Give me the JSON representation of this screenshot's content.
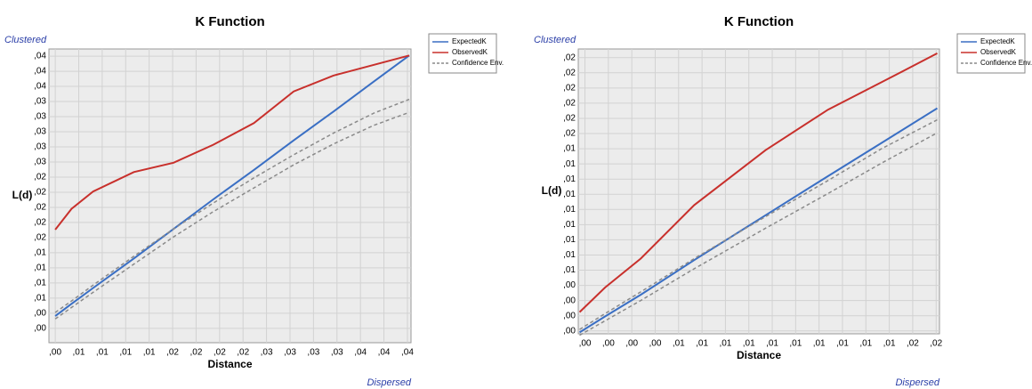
{
  "chart_data": [
    {
      "type": "line",
      "title": "K Function",
      "xlabel": "Distance",
      "ylabel": "L(d)",
      "top_label": "Clustered",
      "bottom_label": "Dispersed",
      "grid": true,
      "x": [
        0.0026,
        0.0044,
        0.0068,
        0.0113,
        0.0157,
        0.0201,
        0.0246,
        0.029,
        0.0334,
        0.0379,
        0.0418
      ],
      "xlim": [
        0.0019,
        0.042
      ],
      "ylim": [
        0.0005,
        0.0413
      ],
      "xticks": [
        {
          "value": 0.0026,
          "label": ",00"
        },
        {
          "value": 0.0052,
          "label": ",01"
        },
        {
          "value": 0.0078,
          "label": ",01"
        },
        {
          "value": 0.0104,
          "label": ",01"
        },
        {
          "value": 0.013,
          "label": ",01"
        },
        {
          "value": 0.0156,
          "label": ",02"
        },
        {
          "value": 0.0182,
          "label": ",02"
        },
        {
          "value": 0.0208,
          "label": ",02"
        },
        {
          "value": 0.0234,
          "label": ",02"
        },
        {
          "value": 0.026,
          "label": ",03"
        },
        {
          "value": 0.0286,
          "label": ",03"
        },
        {
          "value": 0.0312,
          "label": ",03"
        },
        {
          "value": 0.0338,
          "label": ",03"
        },
        {
          "value": 0.0364,
          "label": ",04"
        },
        {
          "value": 0.039,
          "label": ",04"
        },
        {
          "value": 0.0416,
          "label": ",04"
        }
      ],
      "yticks": [
        {
          "value": 0.0025,
          "label": ",00"
        },
        {
          "value": 0.0046,
          "label": ",00"
        },
        {
          "value": 0.0067,
          "label": ",01"
        },
        {
          "value": 0.0088,
          "label": ",01"
        },
        {
          "value": 0.0109,
          "label": ",01"
        },
        {
          "value": 0.013,
          "label": ",01"
        },
        {
          "value": 0.0151,
          "label": ",02"
        },
        {
          "value": 0.0172,
          "label": ",02"
        },
        {
          "value": 0.0193,
          "label": ",02"
        },
        {
          "value": 0.0214,
          "label": ",02"
        },
        {
          "value": 0.0235,
          "label": ",02"
        },
        {
          "value": 0.0256,
          "label": ",03"
        },
        {
          "value": 0.0277,
          "label": ",03"
        },
        {
          "value": 0.0298,
          "label": ",03"
        },
        {
          "value": 0.0319,
          "label": ",03"
        },
        {
          "value": 0.034,
          "label": ",03"
        },
        {
          "value": 0.0361,
          "label": ",04"
        },
        {
          "value": 0.0382,
          "label": ",04"
        },
        {
          "value": 0.0403,
          "label": ",04"
        }
      ],
      "series": [
        {
          "name": "ExpectedK",
          "color": "#3a6fc4",
          "values": [
            0.0042,
            0.0059,
            0.0081,
            0.0122,
            0.0163,
            0.0204,
            0.0245,
            0.0286,
            0.0326,
            0.0368,
            0.0404
          ]
        },
        {
          "name": "ObservedK",
          "color": "#c8302c",
          "values": [
            0.0162,
            0.0191,
            0.0215,
            0.0242,
            0.0255,
            0.028,
            0.031,
            0.0354,
            0.0376,
            0.0391,
            0.0404
          ]
        },
        {
          "name": "Confidence Env.",
          "color": "#8a8a8a",
          "dashed": true,
          "upper": [
            0.0047,
            0.0063,
            0.0085,
            0.0125,
            0.0163,
            0.0199,
            0.0234,
            0.0266,
            0.0296,
            0.0324,
            0.0343
          ],
          "lower": [
            0.0038,
            0.0054,
            0.0075,
            0.0114,
            0.0152,
            0.0187,
            0.022,
            0.0252,
            0.0281,
            0.0307,
            0.0325
          ]
        }
      ]
    },
    {
      "type": "line",
      "title": "K Function",
      "xlabel": "Distance",
      "ylabel": "L(d)",
      "top_label": "Clustered",
      "bottom_label": "Dispersed",
      "grid": true,
      "x": [
        0.00056,
        0.0017,
        0.0033,
        0.0057,
        0.0089,
        0.0117,
        0.0141,
        0.0166
      ],
      "xlim": [
        0.0005,
        0.0167
      ],
      "ylim": [
        0.0013,
        0.021
      ],
      "xticks": [
        {
          "value": 0.0008,
          "label": ",00"
        },
        {
          "value": 0.00185,
          "label": ",00"
        },
        {
          "value": 0.0029,
          "label": ",00"
        },
        {
          "value": 0.00395,
          "label": ",00"
        },
        {
          "value": 0.005,
          "label": ",01"
        },
        {
          "value": 0.00605,
          "label": ",01"
        },
        {
          "value": 0.0071,
          "label": ",01"
        },
        {
          "value": 0.00815,
          "label": ",01"
        },
        {
          "value": 0.0092,
          "label": ",01"
        },
        {
          "value": 0.01025,
          "label": ",01"
        },
        {
          "value": 0.0113,
          "label": ",01"
        },
        {
          "value": 0.01235,
          "label": ",01"
        },
        {
          "value": 0.0134,
          "label": ",01"
        },
        {
          "value": 0.01445,
          "label": ",01"
        },
        {
          "value": 0.0155,
          "label": ",02"
        },
        {
          "value": 0.01655,
          "label": ",02"
        }
      ],
      "yticks": [
        {
          "value": 0.0015,
          "label": ",00"
        },
        {
          "value": 0.00255,
          "label": ",00"
        },
        {
          "value": 0.0036,
          "label": ",00"
        },
        {
          "value": 0.00465,
          "label": ",00"
        },
        {
          "value": 0.0057,
          "label": ",01"
        },
        {
          "value": 0.00675,
          "label": ",01"
        },
        {
          "value": 0.0078,
          "label": ",01"
        },
        {
          "value": 0.00885,
          "label": ",01"
        },
        {
          "value": 0.0099,
          "label": ",01"
        },
        {
          "value": 0.01095,
          "label": ",01"
        },
        {
          "value": 0.012,
          "label": ",01"
        },
        {
          "value": 0.01305,
          "label": ",01"
        },
        {
          "value": 0.0141,
          "label": ",01"
        },
        {
          "value": 0.01515,
          "label": ",02"
        },
        {
          "value": 0.0162,
          "label": ",02"
        },
        {
          "value": 0.01725,
          "label": ",02"
        },
        {
          "value": 0.0183,
          "label": ",02"
        },
        {
          "value": 0.01935,
          "label": ",02"
        },
        {
          "value": 0.0204,
          "label": ",02"
        }
      ],
      "series": [
        {
          "name": "ExpectedK",
          "color": "#3a6fc4",
          "values": [
            0.0014,
            0.0025,
            0.004,
            0.0064,
            0.0095,
            0.0122,
            0.0145,
            0.0169
          ]
        },
        {
          "name": "ObservedK",
          "color": "#c8302c",
          "values": [
            0.0028,
            0.0045,
            0.0065,
            0.0102,
            0.014,
            0.0168,
            0.0187,
            0.0207
          ]
        },
        {
          "name": "Confidence Env.",
          "color": "#8a8a8a",
          "dashed": true,
          "upper": [
            0.0016,
            0.0027,
            0.0042,
            0.0065,
            0.0094,
            0.0119,
            0.0141,
            0.0161
          ],
          "lower": [
            0.0012,
            0.0022,
            0.0036,
            0.0058,
            0.0086,
            0.011,
            0.0131,
            0.0152
          ]
        }
      ]
    }
  ]
}
